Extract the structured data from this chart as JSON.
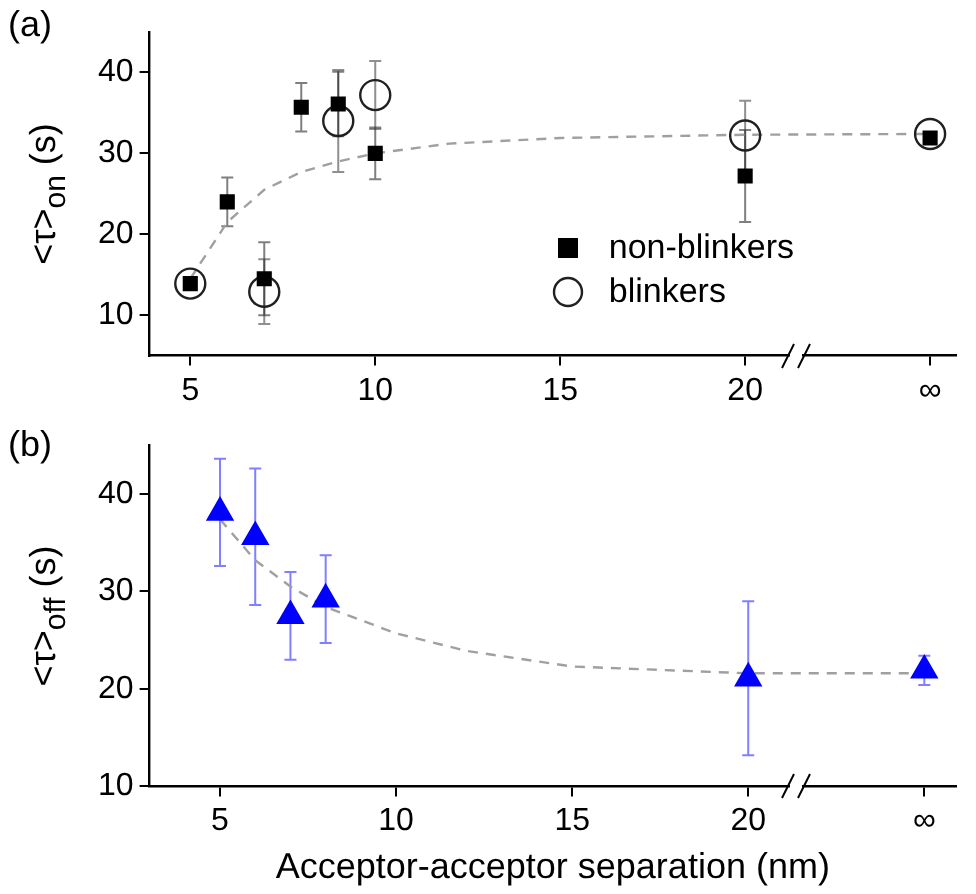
{
  "chart_data": [
    {
      "type": "scatter",
      "title": "(a)",
      "ylabel": "<τ>$_{on}$ (s)",
      "legend": "bottom right",
      "xlim": [
        3.9,
        25.7
      ],
      "xticks": [
        5,
        10,
        15,
        20,
        {
          "value": 25,
          "label": "∞"
        }
      ],
      "ylim": [
        5,
        45
      ],
      "yticks": [
        10,
        20,
        30,
        40
      ],
      "series": [
        {
          "type": "line",
          "color": "#a0a0a0",
          "line_style": "dashed",
          "marker": "none",
          "x": [
            5,
            6,
            7,
            8,
            9,
            10,
            12,
            15,
            20,
            25
          ],
          "values": [
            14.5,
            21.5,
            25.5,
            27.7,
            29,
            30,
            31.2,
            31.9,
            32.3,
            32.4
          ]
        },
        {
          "name": "non-blinkers",
          "color": "#000000",
          "marker": "square",
          "x": [
            5,
            6,
            7,
            8,
            9,
            10,
            20,
            25
          ],
          "values": [
            13.9,
            24,
            14.5,
            35.7,
            36.1,
            30,
            27.2,
            31.9
          ],
          "errors": [
            null,
            3,
            4.5,
            3,
            4,
            3.2,
            5.7,
            null
          ]
        },
        {
          "name": "blinkers",
          "color": "#202020",
          "marker": "circle",
          "x": [
            5,
            7,
            9,
            10,
            20,
            25
          ],
          "values": [
            13.9,
            12.9,
            34,
            37.2,
            32.2,
            32.4
          ],
          "errors": [
            null,
            4,
            6.3,
            4.2,
            4.3,
            null
          ]
        }
      ]
    },
    {
      "type": "scatter",
      "title": "(b)",
      "ylabel": "<τ>$_{off}$ (s)",
      "xlabel": "Acceptor-acceptor separation (nm)",
      "xlim": [
        3,
        25.9
      ],
      "xticks": [
        5,
        10,
        15,
        20,
        {
          "value": 25,
          "label": "∞"
        }
      ],
      "ylim": [
        10,
        45
      ],
      "yticks": [
        10,
        20,
        30,
        40
      ],
      "series": [
        {
          "type": "line",
          "color": "#a0a0a0",
          "line_style": "dashed",
          "marker": "none",
          "x": [
            5,
            6,
            7,
            8,
            10,
            12,
            15,
            20,
            25
          ],
          "values": [
            37.4,
            33.2,
            30.5,
            28.4,
            25.7,
            23.9,
            22.3,
            21.6,
            21.6
          ]
        },
        {
          "color": "#0000ff",
          "marker": "triangle",
          "x": [
            5,
            6,
            7,
            8,
            20,
            25
          ],
          "values": [
            38.1,
            35.6,
            27.5,
            29.2,
            21.1,
            21.9
          ],
          "errors": [
            5.5,
            7,
            4.5,
            4.5,
            7.9,
            1.5
          ]
        }
      ]
    }
  ]
}
